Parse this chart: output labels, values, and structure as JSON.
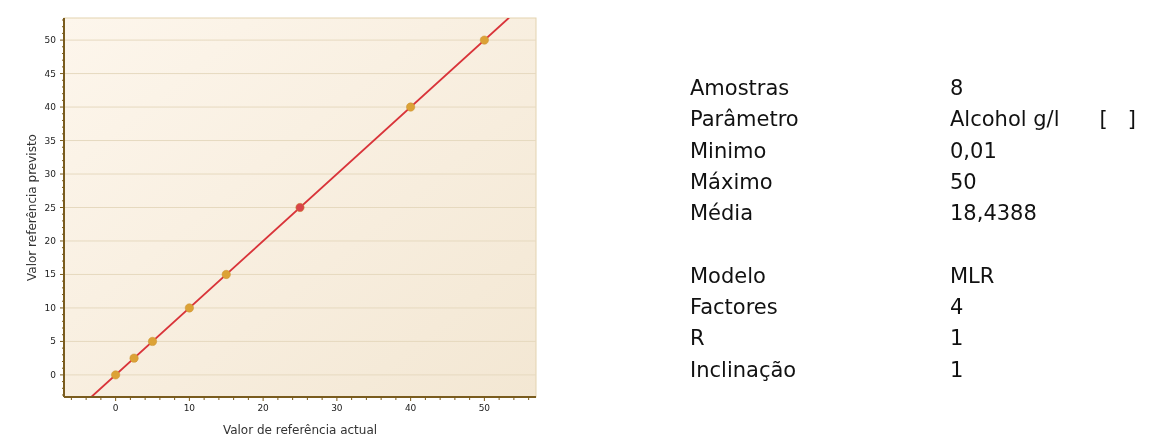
{
  "chart_data": [
    {
      "type": "scatter",
      "xlabel": "Valor de referência actual",
      "ylabel": "Valor referência previsto",
      "xlim": [
        -7,
        57
      ],
      "ylim": [
        -3.3,
        53.3
      ],
      "xticks": [
        {
          "value": -6,
          "label": null
        },
        {
          "value": -4,
          "label": null
        },
        {
          "value": -2,
          "label": null
        },
        0,
        {
          "value": 2,
          "label": null
        },
        {
          "value": 4,
          "label": null
        },
        {
          "value": 6,
          "label": null
        },
        {
          "value": 8,
          "label": null
        },
        10,
        {
          "value": 12,
          "label": null
        },
        {
          "value": 14,
          "label": null
        },
        {
          "value": 16,
          "label": null
        },
        {
          "value": 18,
          "label": null
        },
        20,
        {
          "value": 22,
          "label": null
        },
        {
          "value": 24,
          "label": null
        },
        {
          "value": 26,
          "label": null
        },
        {
          "value": 28,
          "label": null
        },
        30,
        {
          "value": 32,
          "label": null
        },
        {
          "value": 34,
          "label": null
        },
        {
          "value": 36,
          "label": null
        },
        {
          "value": 38,
          "label": null
        },
        40,
        {
          "value": 42,
          "label": null
        },
        {
          "value": 44,
          "label": null
        },
        {
          "value": 46,
          "label": null
        },
        {
          "value": 48,
          "label": null
        },
        50,
        {
          "value": 52,
          "label": null
        },
        {
          "value": 54,
          "label": null
        },
        {
          "value": 56,
          "label": null
        }
      ],
      "yticks": [
        {
          "value": -3,
          "label": null
        },
        {
          "value": -2,
          "label": null
        },
        {
          "value": -1,
          "label": null
        },
        0,
        {
          "value": 1,
          "label": null
        },
        {
          "value": 2,
          "label": null
        },
        {
          "value": 3,
          "label": null
        },
        {
          "value": 4,
          "label": null
        },
        5,
        {
          "value": 6,
          "label": null
        },
        {
          "value": 7,
          "label": null
        },
        {
          "value": 8,
          "label": null
        },
        {
          "value": 9,
          "label": null
        },
        10,
        {
          "value": 11,
          "label": null
        },
        {
          "value": 12,
          "label": null
        },
        {
          "value": 13,
          "label": null
        },
        {
          "value": 14,
          "label": null
        },
        15,
        {
          "value": 16,
          "label": null
        },
        {
          "value": 17,
          "label": null
        },
        {
          "value": 18,
          "label": null
        },
        {
          "value": 19,
          "label": null
        },
        20,
        {
          "value": 21,
          "label": null
        },
        {
          "value": 22,
          "label": null
        },
        {
          "value": 23,
          "label": null
        },
        {
          "value": 24,
          "label": null
        },
        25,
        {
          "value": 26,
          "label": null
        },
        {
          "value": 27,
          "label": null
        },
        {
          "value": 28,
          "label": null
        },
        {
          "value": 29,
          "label": null
        },
        30,
        {
          "value": 31,
          "label": null
        },
        {
          "value": 32,
          "label": null
        },
        {
          "value": 33,
          "label": null
        },
        {
          "value": 34,
          "label": null
        },
        35,
        {
          "value": 36,
          "label": null
        },
        {
          "value": 37,
          "label": null
        },
        {
          "value": 38,
          "label": null
        },
        {
          "value": 39,
          "label": null
        },
        40,
        {
          "value": 41,
          "label": null
        },
        {
          "value": 42,
          "label": null
        },
        {
          "value": 43,
          "label": null
        },
        {
          "value": 44,
          "label": null
        },
        45,
        {
          "value": 46,
          "label": null
        },
        {
          "value": 47,
          "label": null
        },
        {
          "value": 48,
          "label": null
        },
        {
          "value": 49,
          "label": null
        },
        50,
        {
          "value": 51,
          "label": null
        },
        {
          "value": 52,
          "label": null
        },
        {
          "value": 53,
          "label": null
        }
      ],
      "grid": "y",
      "series": [
        {
          "type": "line",
          "color": "#d9343a",
          "x": [
            -3.3,
            53.3
          ],
          "values": [
            -3.3,
            53.3
          ]
        },
        {
          "type": "scatter",
          "marker": "circle",
          "x": [
            0,
            2.5,
            5,
            10,
            15,
            25,
            40,
            50
          ],
          "values": [
            0,
            2.5,
            5,
            10,
            15,
            25,
            40,
            50
          ],
          "colors": [
            "#dca236",
            "#dca236",
            "#dca236",
            "#dca236",
            "#dca236",
            "#d9454a",
            "#dca236",
            "#dca236"
          ]
        }
      ]
    },
    {
      "type": "other",
      "categories": [
        "Amostras",
        "Parâmetro",
        "Minimo",
        "Máximo",
        "Média",
        null,
        "Modelo",
        "Factores",
        "R",
        "Inclinação"
      ],
      "value_labels": [
        "8",
        "Alcohol g/l      [   ]",
        "0,01",
        "50",
        "18,4388",
        null,
        "MLR",
        "4",
        "1",
        "1"
      ]
    }
  ]
}
